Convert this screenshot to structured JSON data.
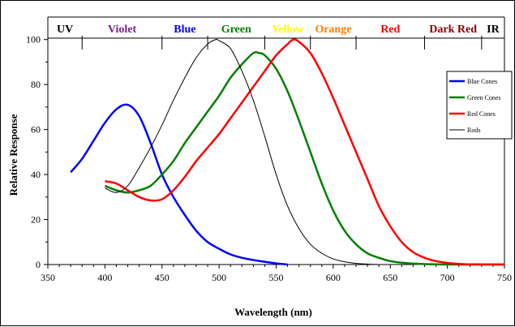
{
  "chart_data": {
    "type": "line",
    "xlabel": "Wavelength (nm)",
    "ylabel": "Relative Response",
    "xlim": [
      350,
      750
    ],
    "ylim": [
      0,
      110
    ],
    "x_ticks": [
      350,
      400,
      450,
      500,
      550,
      600,
      650,
      700,
      750
    ],
    "y_ticks": [
      0,
      20,
      40,
      60,
      80,
      100
    ],
    "grid": false,
    "legend_position": "top-right",
    "color_bands": [
      {
        "label": "UV",
        "start": 350,
        "end": 380,
        "color": "#000000"
      },
      {
        "label": "Violet",
        "start": 380,
        "end": 450,
        "color": "#7a1f8e"
      },
      {
        "label": "Blue",
        "start": 450,
        "end": 490,
        "color": "#0000ff"
      },
      {
        "label": "Green",
        "start": 490,
        "end": 540,
        "color": "#008000"
      },
      {
        "label": "Yellow",
        "start": 540,
        "end": 580,
        "color": "#ffff00"
      },
      {
        "label": "Orange",
        "start": 580,
        "end": 620,
        "color": "#ff8000"
      },
      {
        "label": "Red",
        "start": 620,
        "end": 680,
        "color": "#ff0000"
      },
      {
        "label": "Dark Red",
        "start": 680,
        "end": 730,
        "color": "#8b0000"
      },
      {
        "label": "IR",
        "start": 730,
        "end": 750,
        "color": "#000000"
      }
    ],
    "series": [
      {
        "name": "Blue Cones",
        "color": "#0000ff",
        "x": [
          370,
          380,
          390,
          400,
          410,
          420,
          430,
          440,
          450,
          460,
          470,
          480,
          490,
          500,
          510,
          520,
          530,
          540,
          550,
          560
        ],
        "y": [
          41,
          47,
          55,
          63,
          69,
          71,
          66,
          54,
          40,
          30,
          22,
          15,
          10,
          7,
          4.5,
          3,
          2,
          1.2,
          0.5,
          0
        ]
      },
      {
        "name": "Green Cones",
        "color": "#008000",
        "x": [
          400,
          410,
          420,
          430,
          440,
          450,
          460,
          470,
          480,
          490,
          500,
          510,
          520,
          530,
          535,
          540,
          550,
          560,
          570,
          580,
          590,
          600,
          610,
          620,
          630,
          640,
          650,
          660,
          670,
          680,
          690,
          700,
          720,
          750
        ],
        "y": [
          35,
          33,
          32,
          33,
          35,
          40,
          46,
          54,
          61,
          68,
          75,
          83,
          89,
          94,
          94,
          93,
          87,
          77,
          64,
          50,
          36,
          24,
          15,
          9,
          5,
          3,
          1.5,
          0.8,
          0.4,
          0.2,
          0.1,
          0,
          0,
          0
        ]
      },
      {
        "name": "Red Cones",
        "color": "#ff0000",
        "x": [
          400,
          410,
          420,
          430,
          440,
          450,
          460,
          470,
          480,
          490,
          500,
          510,
          520,
          530,
          540,
          550,
          560,
          565,
          570,
          580,
          590,
          600,
          610,
          620,
          630,
          640,
          650,
          660,
          670,
          680,
          690,
          700,
          710,
          720,
          750
        ],
        "y": [
          37,
          36,
          33,
          30,
          28.5,
          29,
          33,
          39,
          46,
          52,
          58,
          65,
          72,
          79,
          86,
          93,
          98,
          100,
          99,
          94,
          85,
          74,
          62,
          50,
          38,
          26,
          17,
          10,
          5.5,
          3,
          1.5,
          0.7,
          0.3,
          0.1,
          0
        ]
      },
      {
        "name": "Rods",
        "color": "#000000",
        "x": [
          400,
          410,
          420,
          430,
          440,
          450,
          460,
          470,
          480,
          490,
          497,
          500,
          510,
          520,
          530,
          540,
          550,
          560,
          570,
          580,
          590,
          600,
          610,
          620,
          630,
          640
        ],
        "y": [
          34,
          32,
          35,
          43,
          52,
          62,
          73,
          83,
          92,
          98,
          100,
          99.5,
          96,
          86,
          73,
          57,
          40,
          26,
          16,
          9,
          5,
          2.5,
          1.2,
          0.5,
          0.2,
          0
        ]
      }
    ]
  }
}
